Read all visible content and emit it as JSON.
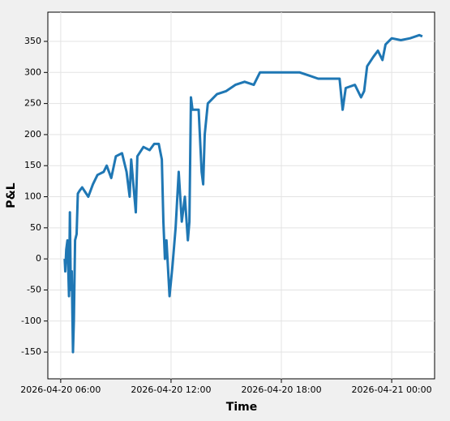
{
  "chart_data": {
    "type": "line",
    "xlabel": "Time",
    "ylabel": "P&L",
    "x": [
      "2026-04-20 06:13",
      "2026-04-20 06:15",
      "2026-04-20 06:18",
      "2026-04-20 06:22",
      "2026-04-20 06:27",
      "2026-04-20 06:30",
      "2026-04-20 06:33",
      "2026-04-20 06:36",
      "2026-04-20 06:40",
      "2026-04-20 06:43",
      "2026-04-20 06:47",
      "2026-04-20 06:52",
      "2026-04-20 06:56",
      "2026-04-20 07:02",
      "2026-04-20 07:10",
      "2026-04-20 07:30",
      "2026-04-20 07:45",
      "2026-04-20 08:00",
      "2026-04-20 08:20",
      "2026-04-20 08:30",
      "2026-04-20 08:45",
      "2026-04-20 09:00",
      "2026-04-20 09:20",
      "2026-04-20 09:35",
      "2026-04-20 09:45",
      "2026-04-20 09:50",
      "2026-04-20 10:05",
      "2026-04-20 10:10",
      "2026-04-20 10:30",
      "2026-04-20 10:50",
      "2026-04-20 11:05",
      "2026-04-20 11:20",
      "2026-04-20 11:30",
      "2026-04-20 11:35",
      "2026-04-20 11:40",
      "2026-04-20 11:45",
      "2026-04-20 11:55",
      "2026-04-20 12:05",
      "2026-04-20 12:15",
      "2026-04-20 12:25",
      "2026-04-20 12:35",
      "2026-04-20 12:45",
      "2026-04-20 12:55",
      "2026-04-20 13:00",
      "2026-04-20 13:05",
      "2026-04-20 13:10",
      "2026-04-20 13:30",
      "2026-04-20 13:40",
      "2026-04-20 13:45",
      "2026-04-20 13:50",
      "2026-04-20 14:00",
      "2026-04-20 14:30",
      "2026-04-20 15:00",
      "2026-04-20 15:30",
      "2026-04-20 16:00",
      "2026-04-20 16:30",
      "2026-04-20 16:50",
      "2026-04-20 17:30",
      "2026-04-20 18:30",
      "2026-04-20 19:00",
      "2026-04-20 19:30",
      "2026-04-20 20:00",
      "2026-04-20 20:30",
      "2026-04-20 21:10",
      "2026-04-20 21:20",
      "2026-04-20 21:30",
      "2026-04-20 22:00",
      "2026-04-20 22:20",
      "2026-04-20 22:30",
      "2026-04-20 22:40",
      "2026-04-20 23:00",
      "2026-04-20 23:15",
      "2026-04-20 23:30",
      "2026-04-20 23:40",
      "2026-04-21 00:00",
      "2026-04-21 00:30",
      "2026-04-21 01:00",
      "2026-04-21 01:30",
      "2026-04-21 01:40"
    ],
    "series": [
      {
        "name": "P&L",
        "color": "#1f77b4",
        "values": [
          0,
          -20,
          15,
          30,
          -60,
          75,
          -50,
          -20,
          -150,
          -100,
          30,
          40,
          105,
          110,
          115,
          100,
          120,
          135,
          140,
          150,
          130,
          165,
          170,
          140,
          100,
          160,
          75,
          165,
          180,
          175,
          185,
          185,
          160,
          60,
          0,
          30,
          -60,
          -10,
          50,
          140,
          60,
          100,
          30,
          60,
          260,
          240,
          240,
          140,
          120,
          200,
          250,
          265,
          270,
          280,
          285,
          280,
          300,
          300,
          300,
          300,
          295,
          290,
          290,
          290,
          240,
          275,
          280,
          260,
          270,
          310,
          325,
          335,
          320,
          345,
          355,
          352,
          355,
          360,
          358
        ]
      }
    ],
    "xlim": [
      "2026-04-20 05:18",
      "2026-04-21 02:20"
    ],
    "xticks": [
      "2026-04-20 06:00",
      "2026-04-20 12:00",
      "2026-04-20 18:00",
      "2026-04-21 00:00"
    ],
    "ylim": [
      -193,
      397
    ],
    "yticks": [
      -150,
      -100,
      -50,
      0,
      50,
      100,
      150,
      200,
      250,
      300,
      350
    ],
    "grid": true
  }
}
